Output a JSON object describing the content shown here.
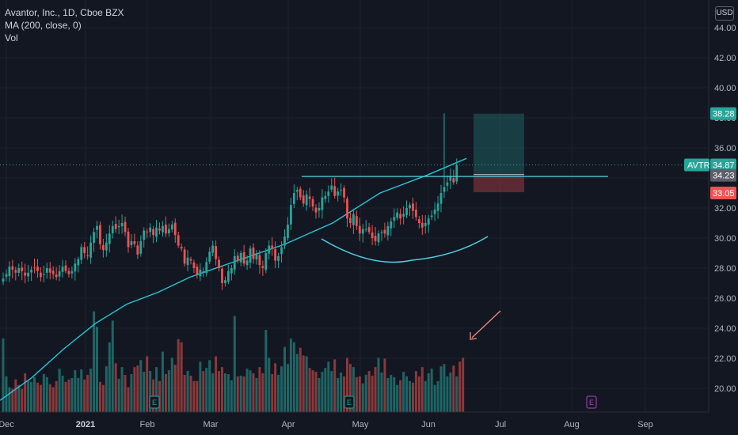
{
  "legend": {
    "symbol": "Avantor, Inc., 1D, Cboe BZX",
    "ma": "MA (200, close, 0)",
    "vol": "Vol"
  },
  "currency": "USD",
  "price_tags": {
    "ticker": "AVTR",
    "last": "34.87",
    "target": "38.28",
    "entry": "34.23",
    "stop": "33.05"
  },
  "colors": {
    "background": "#131722",
    "up": "#26a69a",
    "down": "#ef5350",
    "ma": "#26c6da",
    "annotation": "#4dd0e1",
    "arrow": "#f28b82",
    "earnings_past": "#26a69a",
    "earnings_future": "#ab47bc"
  },
  "chart_data": {
    "type": "candlestick",
    "title": "Avantor, Inc., 1D, Cboe BZX",
    "x_ticks": [
      "Dec",
      "2021",
      "Feb",
      "Mar",
      "Apr",
      "May",
      "Jun",
      "Jul",
      "Aug",
      "Sep"
    ],
    "y_ticks": [
      "20.00",
      "22.00",
      "24.00",
      "26.00",
      "28.00",
      "30.00",
      "32.00",
      "34.00",
      "36.00",
      "38.00",
      "40.00",
      "42.00",
      "44.00"
    ],
    "ylim": [
      18.8,
      45.0
    ],
    "last_price": 34.87,
    "closes": [
      27.3,
      27.6,
      28.1,
      27.9,
      27.7,
      28.0,
      27.8,
      27.5,
      27.7,
      27.9,
      28.0,
      27.8,
      27.4,
      27.6,
      28.0,
      27.7,
      27.6,
      27.4,
      27.8,
      28.1,
      27.8,
      27.6,
      27.8,
      28.3,
      28.6,
      29.4,
      29.0,
      28.8,
      29.7,
      30.4,
      30.8,
      29.6,
      29.2,
      29.7,
      30.3,
      30.8,
      30.6,
      30.8,
      31.0,
      30.4,
      29.4,
      29.8,
      29.6,
      28.9,
      29.8,
      30.5,
      30.4,
      30.7,
      30.2,
      30.7,
      30.5,
      30.8,
      30.3,
      30.6,
      30.9,
      30.2,
      29.5,
      29.3,
      28.3,
      28.7,
      28.5,
      28.0,
      27.6,
      27.9,
      27.8,
      28.4,
      29.1,
      29.5,
      28.6,
      28.0,
      27.0,
      27.2,
      27.8,
      28.0,
      28.8,
      28.5,
      29.0,
      28.3,
      28.5,
      29.3,
      28.6,
      29.0,
      28.2,
      28.0,
      29.0,
      29.5,
      29.3,
      28.5,
      28.8,
      29.4,
      30.1,
      30.9,
      32.2,
      33.0,
      33.2,
      32.7,
      32.3,
      32.9,
      32.6,
      32.1,
      31.7,
      32.0,
      32.7,
      32.8,
      33.1,
      33.5,
      32.8,
      33.1,
      33.2,
      32.7,
      31.3,
      31.0,
      31.6,
      30.8,
      30.3,
      30.6,
      30.6,
      30.4,
      30.0,
      29.8,
      30.3,
      30.4,
      30.3,
      30.8,
      31.1,
      31.4,
      31.7,
      31.3,
      31.6,
      32.0,
      32.2,
      31.8,
      31.4,
      31.0,
      30.7,
      31.0,
      31.3,
      31.5,
      31.9,
      32.3,
      33.0,
      33.4,
      33.7,
      34.1,
      33.7,
      34.87
    ],
    "volumes": [
      9.5,
      4.6,
      3.2,
      3.0,
      4.2,
      3.5,
      3.0,
      5.0,
      4.0,
      3.9,
      4.5,
      3.8,
      3.5,
      4.9,
      4.5,
      3.6,
      3.2,
      4.0,
      5.6,
      4.7,
      3.9,
      4.2,
      4.4,
      5.4,
      4.4,
      5.5,
      4.2,
      4.8,
      5.6,
      13.0,
      11.0,
      3.9,
      3.5,
      5.9,
      9.0,
      11.8,
      6.3,
      4.3,
      5.8,
      4.8,
      3.2,
      4.9,
      5.8,
      6.0,
      6.7,
      5.2,
      7.2,
      5.3,
      4.2,
      5.8,
      4.0,
      7.8,
      4.9,
      5.4,
      7.0,
      6.1,
      9.4,
      9.0,
      4.8,
      5.3,
      4.7,
      4.0,
      4.0,
      6.5,
      5.3,
      5.7,
      6.7,
      5.0,
      7.2,
      5.3,
      5.8,
      5.0,
      4.9,
      4.1,
      12.4,
      4.6,
      4.7,
      4.6,
      5.6,
      5.4,
      5.0,
      4.4,
      5.8,
      5.0,
      10.6,
      7.0,
      4.9,
      6.3,
      4.8,
      5.9,
      8.4,
      6.2,
      9.5,
      9.0,
      7.5,
      8.3,
      7.3,
      7.2,
      5.7,
      5.4,
      5.2,
      4.4,
      5.2,
      5.7,
      6.5,
      5.3,
      6.8,
      4.4,
      5.1,
      4.6,
      7.0,
      6.2,
      5.8,
      4.5,
      4.6,
      3.7,
      4.8,
      5.3,
      4.7,
      5.8,
      7.0,
      5.1,
      6.9,
      4.4,
      4.8,
      4.5,
      3.5,
      4.1,
      5.2,
      4.6,
      4.0,
      3.8,
      5.3,
      4.6,
      5.8,
      4.0,
      5.0,
      5.6,
      3.5,
      4.0,
      5.9,
      6.2,
      4.6,
      5.1,
      6.0,
      4.6,
      6.5,
      7.0
    ],
    "ma200": [
      [
        0,
        19.2
      ],
      [
        40,
        20.7
      ],
      [
        80,
        22.6
      ],
      [
        120,
        24.3
      ],
      [
        160,
        25.6
      ],
      [
        200,
        26.4
      ],
      [
        240,
        27.4
      ],
      [
        300,
        28.5
      ],
      [
        360,
        29.6
      ],
      [
        420,
        31.0
      ],
      [
        480,
        33.0
      ],
      [
        540,
        34.2
      ],
      [
        589,
        35.3
      ]
    ],
    "horizontal_line": 34.1,
    "position": {
      "target": 38.28,
      "entry": 34.23,
      "stop": 33.05
    }
  }
}
